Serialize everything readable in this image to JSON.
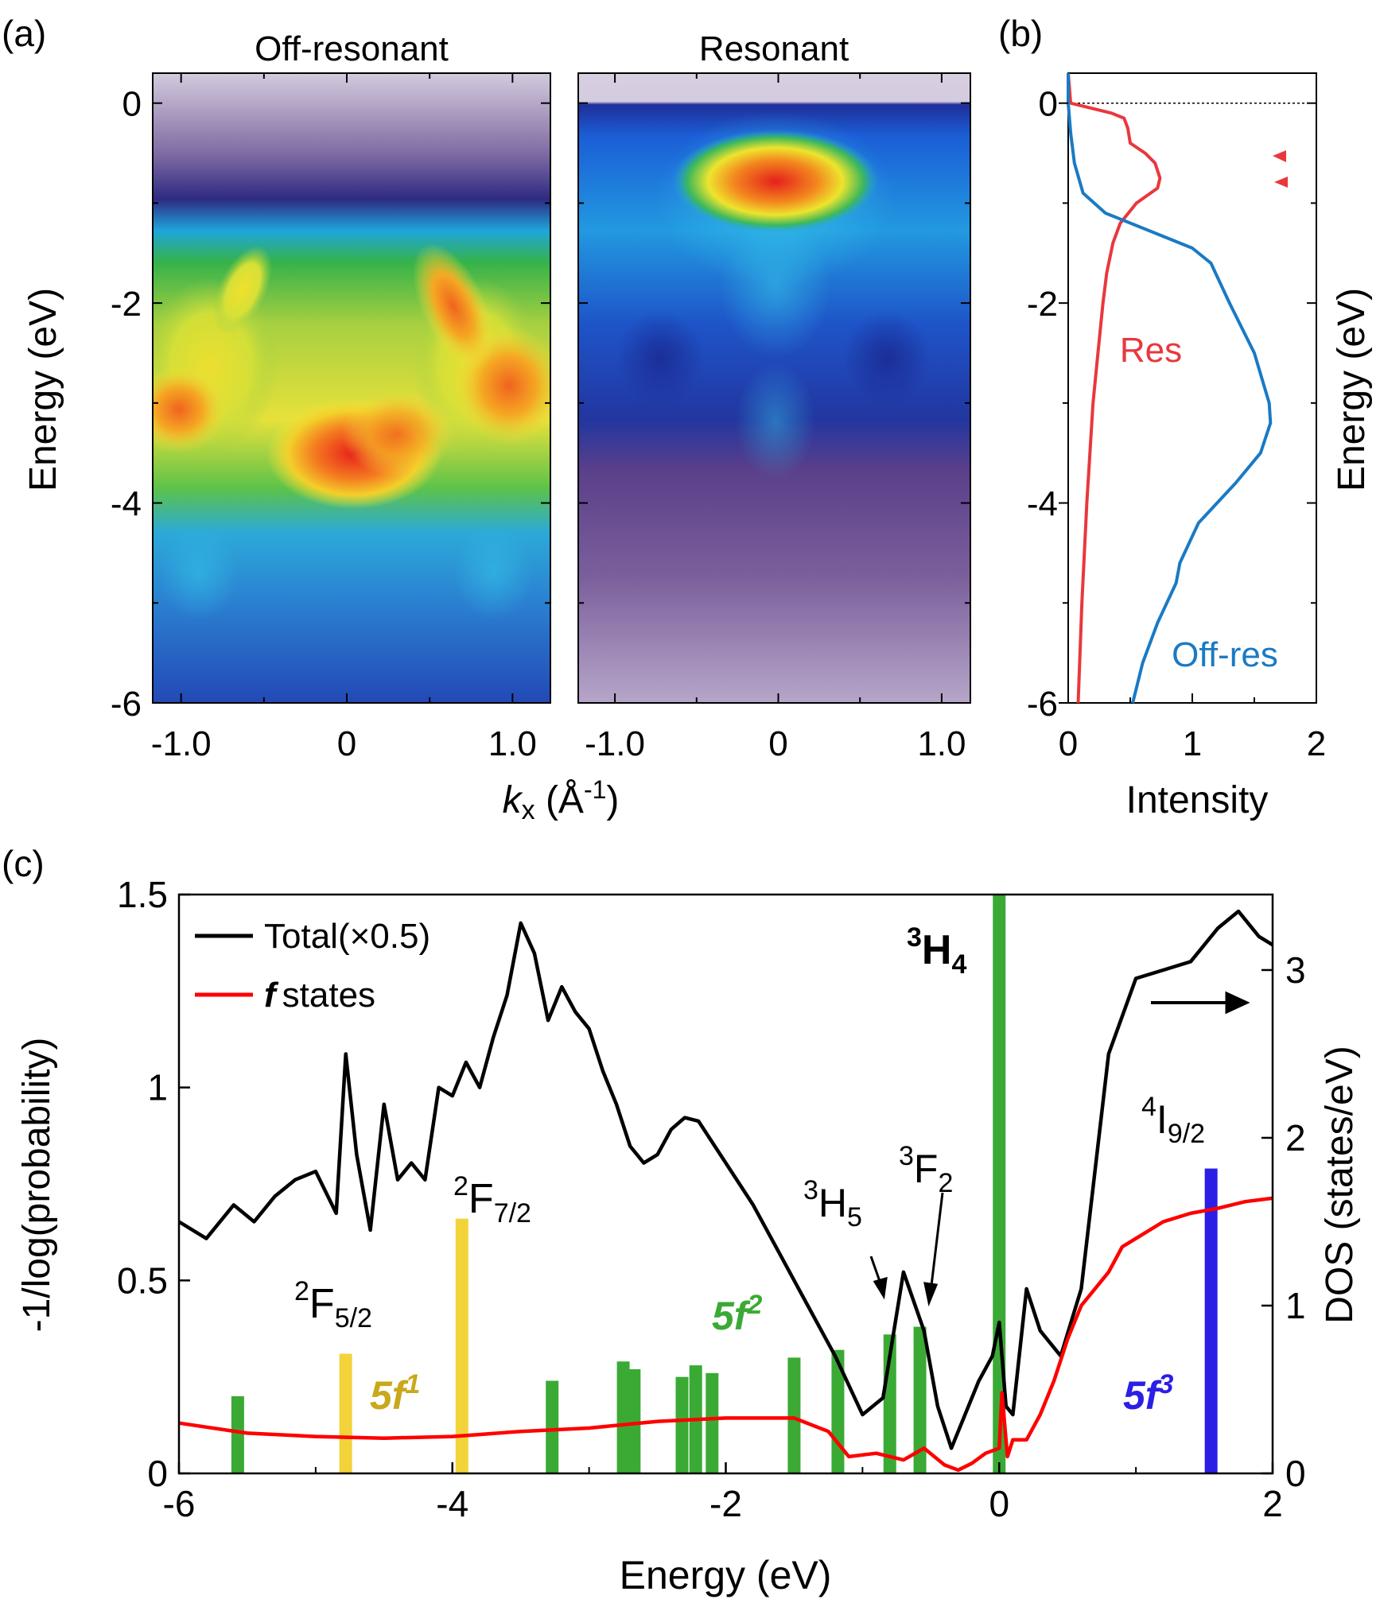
{
  "panels": {
    "a": {
      "label": "(a)",
      "titles": [
        "Off-resonant",
        "Resonant"
      ],
      "ylabel": "Energy (eV)",
      "xlabel_k": "k",
      "xlabel_sub": "x",
      "xlabel_unit": " (Å",
      "xlabel_sup": "-1",
      "xlabel_close": ")",
      "y_ticks": [
        "0",
        "-2",
        "-4",
        "-6"
      ],
      "x_ticks": [
        "-1.0",
        "0",
        "1.0"
      ],
      "colors": {
        "bg_high": "#d8cfe0",
        "purple": "#4a2c7a",
        "blue": "#1e3fb0",
        "cyan": "#2fb4e6",
        "green": "#39b54a",
        "yellow": "#f2e600",
        "orange": "#f59a1c",
        "red": "#e02020"
      }
    },
    "b": {
      "label": "(b)",
      "ylabel": "Energy (eV)",
      "xlabel": "Intensity",
      "x_ticks": [
        "0",
        "1",
        "2"
      ],
      "y_ticks": [
        "0",
        "-2",
        "-4",
        "-6"
      ],
      "res_label": "Res",
      "offres_label": "Off-res",
      "res_color": "#e8383d",
      "offres_color": "#1a7ac4"
    },
    "c": {
      "label": "(c)",
      "legend": [
        {
          "name": "Total(×0.5)",
          "color": "#000000"
        },
        {
          "name": "states",
          "prefix": "f",
          "color": "#ff0000"
        }
      ],
      "terms": [
        {
          "pre": "2",
          "main": "F",
          "sub": "5/2"
        },
        {
          "pre": "2",
          "main": "F",
          "sub": "7/2"
        },
        {
          "pre": "3",
          "main": "H",
          "sub": "5"
        },
        {
          "pre": "3",
          "main": "F",
          "sub": "2"
        },
        {
          "pre": "3",
          "main": "H",
          "sub": "4"
        },
        {
          "pre": "4",
          "main": "I",
          "sub": "9/2"
        }
      ],
      "configs": [
        {
          "base": "5f",
          "sup": "1",
          "color": "#c9a81a"
        },
        {
          "base": "5f",
          "sup": "2",
          "color": "#3aaa35"
        },
        {
          "base": "5f",
          "sup": "3",
          "color": "#2b1ee6"
        }
      ]
    }
  },
  "chart_data": [
    {
      "type": "heatmap",
      "title": "Off-resonant",
      "ylabel": "Energy (eV)",
      "xlabel": "kx (Å-1)",
      "xlim": [
        -1.2,
        1.2
      ],
      "ylim": [
        -6,
        0.3
      ],
      "features": [
        {
          "kx": 0.0,
          "E": -3.6,
          "intensity": "max"
        },
        {
          "kx": 1.0,
          "E": -2.9,
          "intensity": "high"
        },
        {
          "kx": -1.0,
          "E": -2.9,
          "intensity": "high"
        },
        {
          "kx": 0.55,
          "E": -1.7,
          "intensity": "high"
        },
        {
          "kx": -0.6,
          "E": -1.6,
          "intensity": "medium"
        }
      ]
    },
    {
      "type": "heatmap",
      "title": "Resonant",
      "ylabel": "Energy (eV)",
      "xlabel": "kx (Å-1)",
      "xlim": [
        -1.2,
        1.2
      ],
      "ylim": [
        -6,
        0.3
      ],
      "features": [
        {
          "kx": 0.0,
          "E": -0.75,
          "intensity": "max"
        },
        {
          "kx": 0.0,
          "E": -2.3,
          "intensity": "medium"
        }
      ]
    },
    {
      "type": "line",
      "xlabel": "Intensity",
      "ylabel": "Energy (eV)",
      "xlim": [
        0,
        2
      ],
      "ylim": [
        -6,
        0.3
      ],
      "series": [
        {
          "name": "Res",
          "energy": [
            0.3,
            0.0,
            -0.1,
            -0.15,
            -0.25,
            -0.4,
            -0.5,
            -0.6,
            -0.75,
            -0.85,
            -1.0,
            -1.2,
            -1.4,
            -1.7,
            -2.0,
            -2.5,
            -3.0,
            -4.0,
            -5.0,
            -6.0
          ],
          "intensity": [
            0.0,
            0.02,
            0.35,
            0.45,
            0.48,
            0.5,
            0.62,
            0.7,
            0.74,
            0.72,
            0.55,
            0.42,
            0.36,
            0.31,
            0.28,
            0.24,
            0.2,
            0.15,
            0.11,
            0.08
          ]
        },
        {
          "name": "Off-res",
          "energy": [
            0.3,
            0.0,
            -0.3,
            -0.6,
            -0.9,
            -1.1,
            -1.3,
            -1.45,
            -1.6,
            -2.0,
            -2.5,
            -3.0,
            -3.2,
            -3.5,
            -3.8,
            -4.2,
            -4.6,
            -4.8,
            -5.2,
            -5.6,
            -6.0
          ],
          "intensity": [
            0.0,
            0.0,
            0.02,
            0.05,
            0.12,
            0.3,
            0.7,
            1.0,
            1.15,
            1.3,
            1.5,
            1.62,
            1.63,
            1.55,
            1.35,
            1.05,
            0.9,
            0.87,
            0.72,
            0.6,
            0.52
          ]
        }
      ]
    },
    {
      "type": "bar",
      "xlabel": "Energy (eV)",
      "ylabel": "-1/log(probability)",
      "y2label": "DOS (states/eV)",
      "xlim": [
        -6,
        2
      ],
      "ylim": [
        0,
        1.5
      ],
      "y2lim": [
        0,
        3.45
      ],
      "x_ticks": [
        -6,
        -4,
        -2,
        0,
        2
      ],
      "y_ticks": [
        0,
        0.5,
        1,
        1.5
      ],
      "y2_ticks": [
        0,
        1,
        2,
        3
      ],
      "bars": [
        {
          "E": -5.57,
          "p": 0.2,
          "config": "5f2"
        },
        {
          "E": -4.78,
          "p": 0.31,
          "config": "5f1"
        },
        {
          "E": -3.93,
          "p": 0.66,
          "config": "5f1"
        },
        {
          "E": -3.27,
          "p": 0.24,
          "config": "5f2"
        },
        {
          "E": -2.75,
          "p": 0.29,
          "config": "5f2"
        },
        {
          "E": -2.67,
          "p": 0.27,
          "config": "5f2"
        },
        {
          "E": -2.32,
          "p": 0.25,
          "config": "5f2"
        },
        {
          "E": -2.22,
          "p": 0.28,
          "config": "5f2"
        },
        {
          "E": -2.1,
          "p": 0.26,
          "config": "5f2"
        },
        {
          "E": -1.5,
          "p": 0.3,
          "config": "5f2"
        },
        {
          "E": -1.18,
          "p": 0.32,
          "config": "5f2"
        },
        {
          "E": -0.8,
          "p": 0.36,
          "config": "5f2"
        },
        {
          "E": -0.58,
          "p": 0.38,
          "config": "5f2"
        },
        {
          "E": 0.0,
          "p": 1.5,
          "config": "5f2"
        },
        {
          "E": 1.55,
          "p": 0.79,
          "config": "5f3"
        }
      ],
      "series": [
        {
          "name": "Total(×0.5)",
          "axis": "right",
          "x": [
            -6.0,
            -5.8,
            -5.6,
            -5.45,
            -5.3,
            -5.15,
            -5.0,
            -4.85,
            -4.78,
            -4.7,
            -4.6,
            -4.5,
            -4.4,
            -4.3,
            -4.2,
            -4.1,
            -4.0,
            -3.9,
            -3.8,
            -3.7,
            -3.6,
            -3.5,
            -3.4,
            -3.3,
            -3.2,
            -3.1,
            -3.0,
            -2.9,
            -2.8,
            -2.7,
            -2.6,
            -2.5,
            -2.4,
            -2.3,
            -2.2,
            -2.0,
            -1.8,
            -1.6,
            -1.4,
            -1.2,
            -1.0,
            -0.85,
            -0.7,
            -0.55,
            -0.45,
            -0.35,
            -0.25,
            -0.15,
            -0.05,
            0.0,
            0.05,
            0.1,
            0.2,
            0.3,
            0.45,
            0.6,
            0.8,
            1.0,
            1.2,
            1.4,
            1.6,
            1.75,
            1.9,
            2.0
          ],
          "y": [
            1.5,
            1.4,
            1.6,
            1.5,
            1.65,
            1.75,
            1.8,
            1.55,
            2.5,
            1.9,
            1.45,
            2.2,
            1.75,
            1.85,
            1.75,
            2.3,
            2.25,
            2.45,
            2.3,
            2.6,
            2.85,
            3.28,
            3.1,
            2.7,
            2.9,
            2.75,
            2.65,
            2.4,
            2.2,
            1.95,
            1.85,
            1.9,
            2.05,
            2.12,
            2.1,
            1.85,
            1.6,
            1.3,
            1.0,
            0.7,
            0.35,
            0.45,
            1.2,
            0.85,
            0.4,
            0.15,
            0.35,
            0.55,
            0.7,
            0.9,
            0.4,
            0.35,
            1.1,
            0.85,
            0.7,
            1.1,
            2.5,
            2.95,
            3.0,
            3.05,
            3.25,
            3.35,
            3.2,
            3.15
          ]
        },
        {
          "name": "f states",
          "axis": "right",
          "x": [
            -6.0,
            -5.5,
            -5.0,
            -4.5,
            -4.0,
            -3.5,
            -3.0,
            -2.5,
            -2.0,
            -1.5,
            -1.25,
            -1.1,
            -0.9,
            -0.7,
            -0.55,
            -0.4,
            -0.3,
            -0.2,
            -0.1,
            0.0,
            0.02,
            0.06,
            0.1,
            0.2,
            0.3,
            0.4,
            0.5,
            0.6,
            0.7,
            0.8,
            0.9,
            1.0,
            1.2,
            1.4,
            1.6,
            1.8,
            2.0
          ],
          "y": [
            0.3,
            0.24,
            0.22,
            0.21,
            0.22,
            0.25,
            0.27,
            0.31,
            0.33,
            0.33,
            0.25,
            0.1,
            0.12,
            0.08,
            0.15,
            0.05,
            0.02,
            0.06,
            0.12,
            0.15,
            0.48,
            0.1,
            0.2,
            0.2,
            0.35,
            0.55,
            0.8,
            1.0,
            1.1,
            1.2,
            1.35,
            1.4,
            1.5,
            1.55,
            1.58,
            1.62,
            1.64
          ]
        }
      ]
    }
  ]
}
